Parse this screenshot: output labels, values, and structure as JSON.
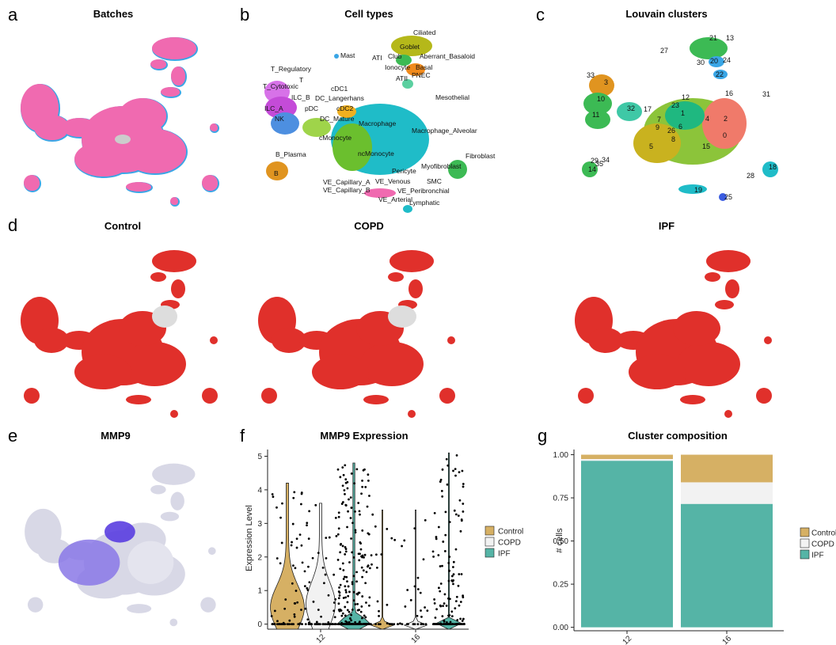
{
  "panels": {
    "a": {
      "letter": "a",
      "title": "Batches"
    },
    "b": {
      "letter": "b",
      "title": "Cell types"
    },
    "c": {
      "letter": "c",
      "title": "Louvain clusters"
    },
    "d": {
      "letter": "d",
      "titles": [
        "Control",
        "COPD",
        "IPF"
      ]
    },
    "e": {
      "letter": "e",
      "title": "MMP9"
    },
    "f": {
      "letter": "f"
    },
    "g": {
      "letter": "g"
    }
  },
  "cell_type_labels": [
    "Ciliated",
    "Goblet",
    "Club",
    "Aberrant_Basaloid",
    "ATI",
    "Basal",
    "Ionocyte",
    "PNEC",
    "ATII",
    "Mast",
    "T_Regulatory",
    "T",
    "T_Cytotoxic",
    "ILC_B",
    "DC_Langerhans",
    "cDC1",
    "ILC_A",
    "pDC",
    "cDC2",
    "NK",
    "DC_Mature",
    "Mesothelial",
    "Macrophage",
    "Macrophage_Alveolar",
    "cMonocyte",
    "ncMonocyte",
    "B_Plasma",
    "B",
    "Fibroblast",
    "Pericyte",
    "Myofibroblast",
    "SMC",
    "VE_Capillary_A",
    "VE_Venous",
    "VE_Capillary_B",
    "VE_Peribronchial",
    "VE_Arterial",
    "Lymphatic"
  ],
  "cluster_labels": [
    "0",
    "1",
    "2",
    "3",
    "4",
    "5",
    "6",
    "7",
    "8",
    "9",
    "10",
    "11",
    "12",
    "13",
    "14",
    "15",
    "16",
    "17",
    "18",
    "19",
    "20",
    "21",
    "22",
    "23",
    "24",
    "25",
    "26",
    "27",
    "28",
    "29",
    "30",
    "31",
    "32",
    "33",
    "34",
    "35"
  ],
  "colors": {
    "umap_red": "#e0302b",
    "umap_pink": "#f06ab0",
    "umap_blue": "#3aa6e6",
    "control": "#d6b064",
    "copd": "#f2f2f2",
    "ipf": "#55b4a6",
    "mmp9_low": "#d8d8e6",
    "mmp9_high": "#5a3ee0"
  },
  "chart_data": [
    {
      "type": "violin",
      "title": "MMP9 Expression",
      "ylabel": "Expression Level",
      "xlabel": "",
      "categories": [
        "12",
        "16"
      ],
      "ylim": [
        0,
        5
      ],
      "yticks": [
        0,
        1,
        2,
        3,
        4,
        5
      ],
      "series": [
        {
          "name": "Control",
          "max": [
            4.2,
            3.4
          ]
        },
        {
          "name": "COPD",
          "max": [
            3.6,
            3.4
          ]
        },
        {
          "name": "IPF",
          "max": [
            4.8,
            5.1
          ]
        }
      ],
      "legend": [
        "Control",
        "COPD",
        "IPF"
      ],
      "legend_placement": "right"
    },
    {
      "type": "bar",
      "title": "Cluster composition",
      "ylabel": "# cells",
      "xlabel": "",
      "categories": [
        "12",
        "16"
      ],
      "stacked": true,
      "ylim": [
        0,
        1
      ],
      "yticks": [
        "0.00",
        "0.25",
        "0.50",
        "0.75",
        "1.00"
      ],
      "series": [
        {
          "name": "IPF",
          "values": [
            0.965,
            0.715
          ]
        },
        {
          "name": "COPD",
          "values": [
            0.01,
            0.125
          ]
        },
        {
          "name": "Control",
          "values": [
            0.025,
            0.16
          ]
        }
      ],
      "legend": [
        "Control",
        "COPD",
        "IPF"
      ],
      "legend_placement": "right"
    }
  ]
}
